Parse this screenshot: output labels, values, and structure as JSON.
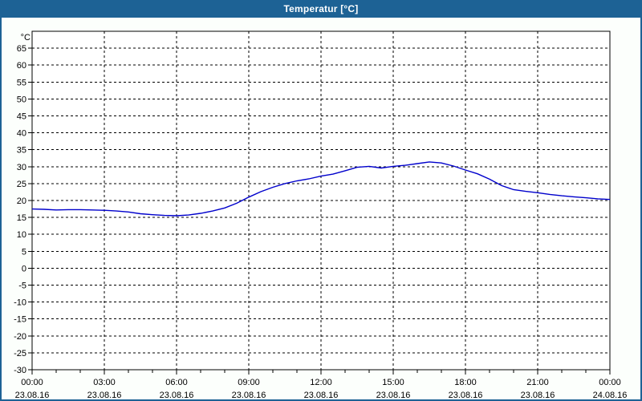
{
  "window": {
    "title": "Temperatur [°C]"
  },
  "colors": {
    "titlebar_bg": "#1D6295",
    "titlebar_text": "#FFFFFF",
    "window_bg": "#FCFFFC",
    "plot_bg": "#FFFFFF",
    "grid": "#000000",
    "axis": "#000000",
    "line": "#0000CC",
    "label_text": "#000000"
  },
  "chart_data": {
    "type": "line",
    "title": "Temperatur [°C]",
    "legend": "none",
    "grid": "dashed",
    "y_axis": {
      "unit_label": "°C",
      "min": -30,
      "max": 70,
      "tick_step": 5,
      "tick_values": [
        65,
        60,
        55,
        50,
        45,
        40,
        35,
        30,
        25,
        20,
        15,
        10,
        5,
        0,
        -5,
        -10,
        -15,
        -20,
        -25,
        -30
      ]
    },
    "x_axis": {
      "min_hour": 0,
      "max_hour": 24,
      "minor_tick_every_hours": 1,
      "major_tick_every_hours": 3,
      "major_ticks": [
        {
          "hour": 0,
          "time": "00:00",
          "date": "23.08.16"
        },
        {
          "hour": 3,
          "time": "03:00",
          "date": "23.08.16"
        },
        {
          "hour": 6,
          "time": "06:00",
          "date": "23.08.16"
        },
        {
          "hour": 9,
          "time": "09:00",
          "date": "23.08.16"
        },
        {
          "hour": 12,
          "time": "12:00",
          "date": "23.08.16"
        },
        {
          "hour": 15,
          "time": "15:00",
          "date": "23.08.16"
        },
        {
          "hour": 18,
          "time": "18:00",
          "date": "23.08.16"
        },
        {
          "hour": 21,
          "time": "21:00",
          "date": "23.08.16"
        },
        {
          "hour": 24,
          "time": "00:00",
          "date": "24.08.16"
        }
      ]
    },
    "series": [
      {
        "name": "Temperatur",
        "color": "#0000CC",
        "points": [
          [
            0,
            17.5
          ],
          [
            0.5,
            17.4
          ],
          [
            1,
            17.2
          ],
          [
            1.5,
            17.3
          ],
          [
            2,
            17.3
          ],
          [
            2.5,
            17.2
          ],
          [
            3,
            17.1
          ],
          [
            3.5,
            16.9
          ],
          [
            4,
            16.6
          ],
          [
            4.5,
            16.1
          ],
          [
            5,
            15.8
          ],
          [
            5.5,
            15.6
          ],
          [
            6,
            15.5
          ],
          [
            6.5,
            15.7
          ],
          [
            7,
            16.2
          ],
          [
            7.5,
            16.9
          ],
          [
            8,
            17.8
          ],
          [
            8.5,
            19.2
          ],
          [
            9,
            21.0
          ],
          [
            9.5,
            22.6
          ],
          [
            10,
            23.9
          ],
          [
            10.5,
            25.0
          ],
          [
            11,
            25.8
          ],
          [
            11.5,
            26.4
          ],
          [
            12,
            27.2
          ],
          [
            12.5,
            27.8
          ],
          [
            13,
            28.8
          ],
          [
            13.5,
            29.8
          ],
          [
            14,
            30.1
          ],
          [
            14.5,
            29.6
          ],
          [
            15,
            30.1
          ],
          [
            15.5,
            30.4
          ],
          [
            16,
            30.9
          ],
          [
            16.5,
            31.4
          ],
          [
            17,
            31.1
          ],
          [
            17.5,
            30.2
          ],
          [
            18,
            29.0
          ],
          [
            18.5,
            27.9
          ],
          [
            19,
            26.3
          ],
          [
            19.5,
            24.4
          ],
          [
            20,
            23.2
          ],
          [
            20.5,
            22.7
          ],
          [
            21,
            22.3
          ],
          [
            21.5,
            21.8
          ],
          [
            22,
            21.4
          ],
          [
            22.5,
            21.1
          ],
          [
            23,
            20.8
          ],
          [
            23.5,
            20.5
          ],
          [
            24,
            20.3
          ]
        ]
      }
    ]
  }
}
